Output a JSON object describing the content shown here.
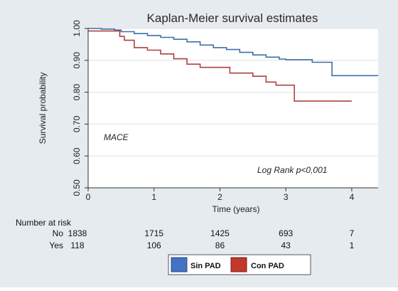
{
  "chart_data": {
    "type": "line",
    "title": "Kaplan-Meier survival estimates",
    "xlabel": "Time (years)",
    "ylabel": "Survival probability",
    "xlim": [
      0,
      4.4
    ],
    "ylim": [
      0.5,
      1.0
    ],
    "x_ticks": [
      "0",
      "1",
      "2",
      "3",
      "4"
    ],
    "y_ticks": [
      "0.50",
      "0.60",
      "0.70",
      "0.80",
      "0.90",
      "1.00"
    ],
    "grid": true,
    "series": [
      {
        "name": "Sin PAD",
        "color": "#3f6fa8",
        "step_points": [
          [
            0,
            1.0
          ],
          [
            0.2,
            0.998
          ],
          [
            0.4,
            0.995
          ],
          [
            0.5,
            0.99
          ],
          [
            0.7,
            0.984
          ],
          [
            0.9,
            0.978
          ],
          [
            1.1,
            0.972
          ],
          [
            1.3,
            0.966
          ],
          [
            1.5,
            0.958
          ],
          [
            1.7,
            0.948
          ],
          [
            1.9,
            0.94
          ],
          [
            2.1,
            0.934
          ],
          [
            2.3,
            0.925
          ],
          [
            2.5,
            0.917
          ],
          [
            2.7,
            0.91
          ],
          [
            2.9,
            0.904
          ],
          [
            3.0,
            0.902
          ],
          [
            3.3,
            0.902
          ],
          [
            3.4,
            0.894
          ],
          [
            3.7,
            0.894
          ],
          [
            3.7,
            0.852
          ],
          [
            4.4,
            0.852
          ]
        ]
      },
      {
        "name": "Con PAD",
        "color": "#b04040",
        "step_points": [
          [
            0,
            0.992
          ],
          [
            0.45,
            0.992
          ],
          [
            0.48,
            0.975
          ],
          [
            0.55,
            0.963
          ],
          [
            0.7,
            0.94
          ],
          [
            0.9,
            0.932
          ],
          [
            1.1,
            0.92
          ],
          [
            1.3,
            0.905
          ],
          [
            1.5,
            0.888
          ],
          [
            1.7,
            0.878
          ],
          [
            2.1,
            0.878
          ],
          [
            2.15,
            0.86
          ],
          [
            2.5,
            0.85
          ],
          [
            2.7,
            0.832
          ],
          [
            2.85,
            0.822
          ],
          [
            3.1,
            0.822
          ],
          [
            3.13,
            0.772
          ],
          [
            4.0,
            0.772
          ]
        ]
      }
    ],
    "annotations": [
      "MACE",
      "Log Rank p<0,001"
    ]
  },
  "risk_table": {
    "header": "Number at risk",
    "rows": [
      {
        "label": "No",
        "values": [
          "1838",
          "1715",
          "1425",
          "693",
          "7"
        ]
      },
      {
        "label": "Yes",
        "values": [
          "118",
          "106",
          "86",
          "43",
          "1"
        ]
      }
    ]
  },
  "legend": [
    {
      "label": "Sin PAD",
      "color": "#4472c4"
    },
    {
      "label": "Con PAD",
      "color": "#c0392b"
    }
  ]
}
